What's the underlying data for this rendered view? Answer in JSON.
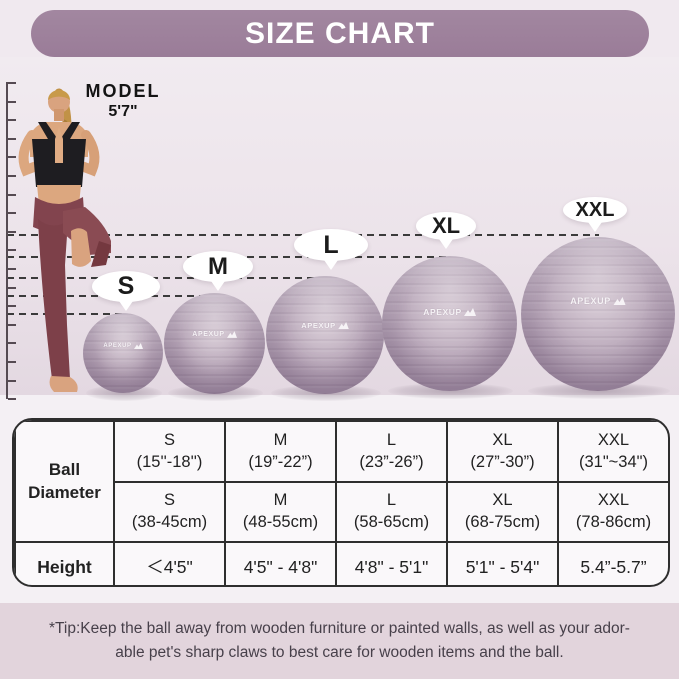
{
  "header": {
    "title": "SIZE CHART"
  },
  "model": {
    "label_line1": "MODEL",
    "label_line2": "5'7\""
  },
  "brand": "APEXUP",
  "balls": [
    {
      "label": "S"
    },
    {
      "label": "M"
    },
    {
      "label": "L"
    },
    {
      "label": "XL"
    },
    {
      "label": "XXL"
    }
  ],
  "size_table": {
    "row_header_diameter": "Ball\nDiameter",
    "row_header_height": "Height",
    "diameter_inches": [
      "S\n(15''-18'')",
      "M\n(19”-22”)",
      "L\n(23”-26”)",
      "XL\n(27”-30”)",
      "XXL\n(31\"~34\")"
    ],
    "diameter_cm": [
      "S\n(38-45cm)",
      "M\n(48-55cm)",
      "L\n(58-65cm)",
      "XL\n(68-75cm)",
      "XXL\n(78-86cm)"
    ],
    "heights": [
      "＜4'5\"",
      "4'5\" - 4'8\"",
      "4'8\" - 5'1\"",
      "5'1\" - 5'4\"",
      "5.4”-5.7”"
    ]
  },
  "footer": {
    "tip": "*Tip:Keep the ball away from wooden furniture or painted walls, as well as your ador-\nable pet's sharp claws to best care for wooden items and the ball."
  },
  "colors": {
    "banner": "#9d7f9b",
    "ball": "#b1a0b2",
    "tip_background": "#e2d4dc",
    "scene_background": "#ece3ea"
  }
}
